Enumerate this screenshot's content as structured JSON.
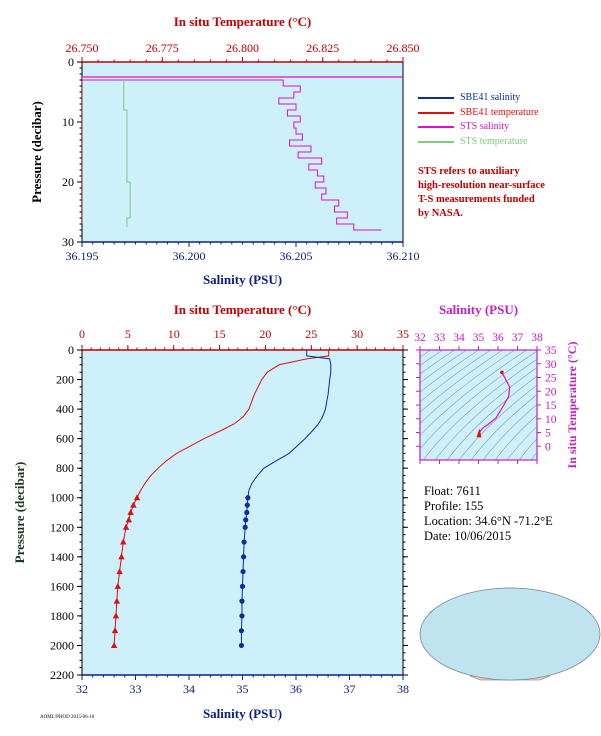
{
  "colors": {
    "plot_bg": "#cdf0fa",
    "salinity": "#0a2ea0",
    "temperature": "#e01010",
    "sts_salinity": "#dd10cc",
    "sts_temperature": "#7ccc7c",
    "axis_top": "#c00000",
    "axis_bottom": "#102080",
    "axis_left": "#1a3a20",
    "ts_axis": "#c020c0"
  },
  "footer_text": "AOML/PHOD 2015-06-10",
  "info": {
    "float": "Float:  7611",
    "profile": "Profile:  155",
    "location": "Location:  34.6°N  -71.2°E",
    "date": "Date:  10/06/2015"
  },
  "note": {
    "lines": [
      "STS refers to auxiliary",
      "high-resolution near-surface",
      "T-S measurements funded",
      "by NASA."
    ]
  },
  "chart_data": [
    {
      "type": "line",
      "title": "",
      "top_axis_label": "In situ Temperature (°C)",
      "top_axis_range": [
        26.75,
        26.85
      ],
      "top_ticks": [
        "26.750",
        "26.775",
        "26.800",
        "26.825",
        "26.850"
      ],
      "bottom_axis_label": "Salinity (PSU)",
      "bottom_axis_range": [
        36.195,
        36.21
      ],
      "bottom_ticks": [
        "36.195",
        "36.200",
        "36.205",
        "36.210"
      ],
      "ylabel": "Pressure (decibar)",
      "y_range": [
        0,
        30
      ],
      "y_inverted": true,
      "y_ticks": [
        "0",
        "10",
        "20",
        "30"
      ],
      "legend_position": "right",
      "series": [
        {
          "name": "SBE41 salinity",
          "axis": "bottom",
          "pressure": [
            3,
            8,
            14,
            20,
            27
          ],
          "values": [
            36.195,
            36.195,
            36.195,
            36.195,
            36.195
          ]
        },
        {
          "name": "SBE41 temperature",
          "axis": "top",
          "pressure": [
            3,
            8,
            14,
            20,
            27
          ],
          "values": [
            26.75,
            26.75,
            26.75,
            26.75,
            26.75
          ]
        },
        {
          "name": "STS salinity",
          "axis": "bottom",
          "pressure": [
            2.5,
            3,
            4,
            5,
            6,
            7,
            8,
            9,
            10,
            11,
            12,
            13,
            14,
            15,
            16,
            17,
            18,
            19,
            20,
            21,
            22,
            23,
            24,
            25,
            26,
            27,
            28
          ],
          "values": [
            36.195,
            36.2044,
            36.2052,
            36.2049,
            36.2042,
            36.205,
            36.2046,
            36.2052,
            36.2049,
            36.205,
            36.2053,
            36.2047,
            36.2057,
            36.2051,
            36.2062,
            36.2056,
            36.206,
            36.2063,
            36.2059,
            36.2064,
            36.2062,
            36.207,
            36.2068,
            36.2074,
            36.2069,
            36.2077,
            36.209
          ]
        },
        {
          "name": "STS temperature",
          "axis": "top",
          "pressure": [
            3,
            8,
            14,
            20,
            24,
            26,
            27.5
          ],
          "values": [
            26.763,
            26.764,
            26.764,
            26.765,
            26.765,
            26.764,
            26.764
          ]
        }
      ]
    },
    {
      "type": "line",
      "title": "",
      "top_axis_label": "In situ Temperature (°C)",
      "top_axis_range": [
        0,
        35
      ],
      "top_ticks": [
        "0",
        "5",
        "10",
        "15",
        "20",
        "25",
        "30",
        "35"
      ],
      "bottom_axis_label": "Salinity (PSU)",
      "bottom_axis_range": [
        32,
        38
      ],
      "bottom_ticks": [
        "32",
        "33",
        "34",
        "35",
        "36",
        "37",
        "38"
      ],
      "ylabel": "Pressure (decibar)",
      "y_range": [
        0,
        2200
      ],
      "y_inverted": true,
      "y_ticks": [
        "0",
        "200",
        "400",
        "600",
        "800",
        "1000",
        "1200",
        "1400",
        "1600",
        "1800",
        "2000",
        "2200"
      ],
      "series": [
        {
          "name": "Temperature",
          "axis": "top",
          "marker": "triangle",
          "pressure": [
            3,
            40,
            60,
            100,
            150,
            200,
            300,
            400,
            450,
            500,
            550,
            600,
            650,
            700,
            750,
            800,
            850,
            900,
            950,
            1000,
            1050,
            1100,
            1150,
            1200,
            1300,
            1400,
            1500,
            1600,
            1700,
            1800,
            1900,
            2000
          ],
          "values": [
            26.9,
            26.9,
            24.5,
            21.5,
            20.2,
            19.6,
            18.8,
            18.2,
            17.6,
            16.6,
            15.0,
            13.3,
            11.8,
            10.3,
            9.2,
            8.3,
            7.5,
            6.9,
            6.4,
            6.0,
            5.6,
            5.3,
            5.1,
            4.8,
            4.5,
            4.3,
            4.1,
            3.9,
            3.8,
            3.7,
            3.6,
            3.5
          ]
        },
        {
          "name": "Salinity",
          "axis": "bottom",
          "marker": "circle",
          "pressure": [
            3,
            40,
            60,
            100,
            150,
            200,
            300,
            400,
            450,
            500,
            550,
            600,
            650,
            700,
            750,
            800,
            850,
            900,
            950,
            1000,
            1050,
            1100,
            1150,
            1200,
            1300,
            1400,
            1500,
            1600,
            1700,
            1800,
            1900,
            2000
          ],
          "values": [
            36.2,
            36.2,
            36.63,
            36.65,
            36.65,
            36.63,
            36.6,
            36.55,
            36.5,
            36.42,
            36.3,
            36.17,
            36.02,
            35.87,
            35.63,
            35.4,
            35.28,
            35.18,
            35.12,
            35.1,
            35.09,
            35.08,
            35.06,
            35.05,
            35.03,
            35.02,
            35.01,
            35.0,
            34.99,
            34.99,
            34.98,
            34.98
          ]
        }
      ]
    },
    {
      "type": "scatter",
      "title": "",
      "xlabel": "Salinity (PSU)",
      "ylabel": "In situ Temperature (°C)",
      "x_range": [
        32,
        38
      ],
      "y_range": [
        -5,
        35
      ],
      "x_ticks": [
        "32",
        "33",
        "34",
        "35",
        "36",
        "37",
        "38"
      ],
      "y_ticks": [
        "0",
        "5",
        "10",
        "15",
        "20",
        "25",
        "30",
        "35"
      ],
      "series": [
        {
          "name": "T-S",
          "x": [
            36.2,
            36.6,
            36.55,
            36.3,
            35.9,
            35.5,
            35.2,
            35.08,
            35.02,
            34.98
          ],
          "y": [
            26.9,
            21.5,
            18.2,
            15.0,
            10.3,
            8.0,
            6.5,
            5.3,
            4.3,
            3.5
          ]
        }
      ]
    }
  ]
}
